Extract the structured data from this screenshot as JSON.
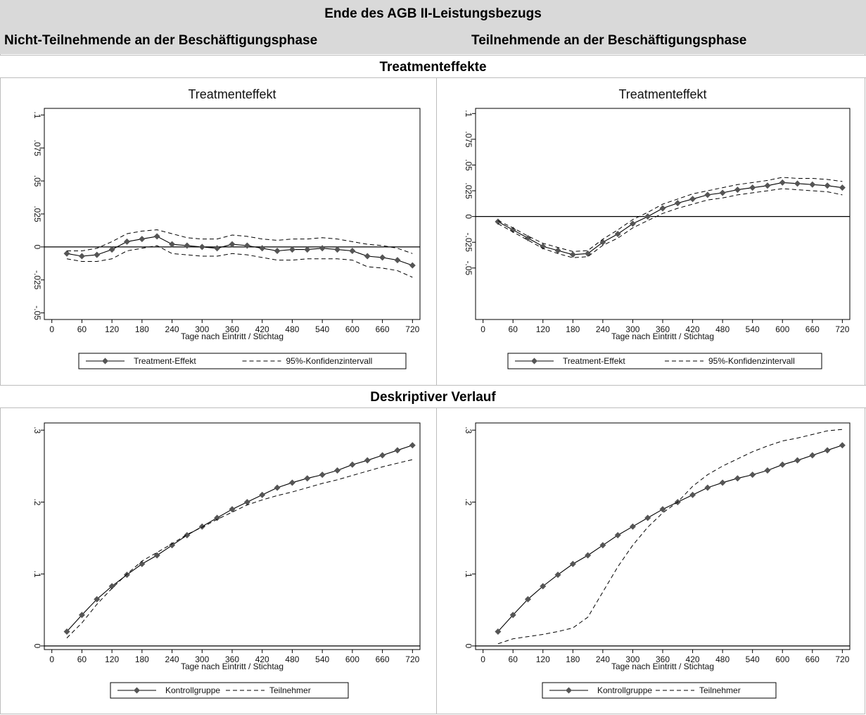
{
  "header": {
    "title": "Ende des AGB II-Leistungsbezugs",
    "left_column": "Nicht-Teilnehmende an der Beschäftigungsphase",
    "right_column": "Teilnehmende an der Beschäftigungsphase"
  },
  "sections": {
    "treatment": "Treatmenteffekte",
    "descriptive": "Deskriptiver Verlauf"
  },
  "colors": {
    "marker_line": "#555555",
    "line": "#000000",
    "grid": "#bdbdbd"
  },
  "chart_data": [
    {
      "id": "te-left",
      "type": "line",
      "title": "Treatmenteffekt",
      "xlabel": "Tage nach Eintritt / Stichtag",
      "ylabel": "",
      "x_ticks": [
        0,
        60,
        120,
        180,
        240,
        300,
        360,
        420,
        480,
        540,
        600,
        660,
        720
      ],
      "y_ticks": [
        -0.05,
        -0.025,
        0,
        0.025,
        0.05,
        0.075,
        0.1
      ],
      "y_tick_labels": [
        "-.05",
        "-.025",
        "0",
        ".025",
        ".05",
        ".075",
        ".1"
      ],
      "xlim": [
        -15,
        735
      ],
      "ylim": [
        -0.055,
        0.105
      ],
      "zero_line": true,
      "x": [
        30,
        60,
        90,
        120,
        150,
        180,
        210,
        240,
        270,
        300,
        330,
        360,
        390,
        420,
        450,
        480,
        510,
        540,
        570,
        600,
        630,
        660,
        690,
        720
      ],
      "series": [
        {
          "name": "Treatment-Effekt",
          "style": "marker",
          "values": [
            -0.005,
            -0.007,
            -0.006,
            -0.002,
            0.004,
            0.006,
            0.008,
            0.002,
            0.001,
            0.0,
            -0.001,
            0.002,
            0.001,
            -0.001,
            -0.003,
            -0.002,
            -0.002,
            -0.001,
            -0.002,
            -0.003,
            -0.007,
            -0.008,
            -0.01,
            -0.014
          ]
        },
        {
          "name": "95%-Konfidenzintervall",
          "style": "dashed",
          "values": [
            -0.003,
            -0.003,
            -0.001,
            0.004,
            0.01,
            0.012,
            0.013,
            0.01,
            0.007,
            0.006,
            0.006,
            0.009,
            0.008,
            0.006,
            0.005,
            0.006,
            0.006,
            0.007,
            0.006,
            0.004,
            0.002,
            0.001,
            -0.001,
            -0.005
          ]
        },
        {
          "name": "",
          "style": "dashed",
          "values": [
            -0.009,
            -0.011,
            -0.011,
            -0.009,
            -0.003,
            -0.001,
            0.001,
            -0.005,
            -0.006,
            -0.007,
            -0.007,
            -0.005,
            -0.006,
            -0.008,
            -0.01,
            -0.01,
            -0.009,
            -0.009,
            -0.009,
            -0.01,
            -0.015,
            -0.016,
            -0.018,
            -0.023
          ]
        }
      ],
      "legend": [
        "Treatment-Effekt",
        "95%-Konfidenzintervall"
      ]
    },
    {
      "id": "te-right",
      "type": "line",
      "title": "Treatmenteffekt",
      "xlabel": "Tage nach Eintritt / Stichtag",
      "ylabel": "",
      "x_ticks": [
        0,
        60,
        120,
        180,
        240,
        300,
        360,
        420,
        480,
        540,
        600,
        660,
        720
      ],
      "y_ticks": [
        -0.05,
        -0.025,
        0,
        0.025,
        0.05,
        0.075,
        0.1
      ],
      "y_tick_labels": [
        "-.05",
        "-.025",
        "0",
        ".025",
        ".05",
        ".075",
        ".1"
      ],
      "xlim": [
        -15,
        735
      ],
      "ylim": [
        -0.1,
        0.105
      ],
      "zero_line": true,
      "x": [
        30,
        60,
        90,
        120,
        150,
        180,
        210,
        240,
        270,
        300,
        330,
        360,
        390,
        420,
        450,
        480,
        510,
        540,
        570,
        600,
        630,
        660,
        690,
        720
      ],
      "series": [
        {
          "name": "Treatment-Effekt",
          "style": "marker",
          "values": [
            -0.005,
            -0.013,
            -0.021,
            -0.029,
            -0.033,
            -0.037,
            -0.036,
            -0.025,
            -0.017,
            -0.007,
            0.0,
            0.008,
            0.013,
            0.017,
            0.021,
            0.023,
            0.026,
            0.028,
            0.03,
            0.033,
            0.032,
            0.031,
            0.03,
            0.028
          ]
        },
        {
          "name": "95%-Konfidenzintervall",
          "style": "dashed",
          "values": [
            -0.004,
            -0.011,
            -0.019,
            -0.026,
            -0.03,
            -0.034,
            -0.033,
            -0.022,
            -0.013,
            -0.003,
            0.004,
            0.012,
            0.017,
            0.022,
            0.025,
            0.028,
            0.031,
            0.033,
            0.035,
            0.038,
            0.037,
            0.037,
            0.036,
            0.034
          ]
        },
        {
          "name": "",
          "style": "dashed",
          "values": [
            -0.007,
            -0.015,
            -0.023,
            -0.031,
            -0.036,
            -0.04,
            -0.039,
            -0.028,
            -0.021,
            -0.011,
            -0.004,
            0.003,
            0.008,
            0.012,
            0.016,
            0.018,
            0.021,
            0.023,
            0.025,
            0.027,
            0.026,
            0.025,
            0.024,
            0.021
          ]
        }
      ],
      "legend": [
        "Treatment-Effekt",
        "95%-Konfidenzintervall"
      ]
    },
    {
      "id": "desc-left",
      "type": "line",
      "title": "",
      "xlabel": "Tage nach Eintritt / Stichtag",
      "ylabel": "",
      "x_ticks": [
        0,
        60,
        120,
        180,
        240,
        300,
        360,
        420,
        480,
        540,
        600,
        660,
        720
      ],
      "y_ticks": [
        0,
        0.1,
        0.2,
        0.3
      ],
      "y_tick_labels": [
        "0",
        ".1",
        ".2",
        ".3"
      ],
      "xlim": [
        -15,
        735
      ],
      "ylim": [
        -0.005,
        0.31
      ],
      "zero_line": true,
      "x": [
        30,
        60,
        90,
        120,
        150,
        180,
        210,
        240,
        270,
        300,
        330,
        360,
        390,
        420,
        450,
        480,
        510,
        540,
        570,
        600,
        630,
        660,
        690,
        720
      ],
      "series": [
        {
          "name": "Kontrollgruppe",
          "style": "marker",
          "values": [
            0.02,
            0.043,
            0.065,
            0.083,
            0.099,
            0.114,
            0.126,
            0.14,
            0.154,
            0.166,
            0.178,
            0.19,
            0.2,
            0.21,
            0.22,
            0.227,
            0.233,
            0.238,
            0.244,
            0.252,
            0.258,
            0.265,
            0.272,
            0.279
          ]
        },
        {
          "name": "Teilnehmer",
          "style": "dashed",
          "values": [
            0.011,
            0.032,
            0.058,
            0.08,
            0.1,
            0.118,
            0.13,
            0.142,
            0.155,
            0.165,
            0.176,
            0.186,
            0.196,
            0.203,
            0.209,
            0.214,
            0.22,
            0.226,
            0.231,
            0.237,
            0.243,
            0.249,
            0.254,
            0.259
          ]
        }
      ],
      "legend": [
        "Kontrollgruppe",
        "Teilnehmer"
      ]
    },
    {
      "id": "desc-right",
      "type": "line",
      "title": "",
      "xlabel": "Tage nach Eintritt / Stichtag",
      "ylabel": "",
      "x_ticks": [
        0,
        60,
        120,
        180,
        240,
        300,
        360,
        420,
        480,
        540,
        600,
        660,
        720
      ],
      "y_ticks": [
        0,
        0.1,
        0.2,
        0.3
      ],
      "y_tick_labels": [
        "0",
        ".1",
        ".2",
        ".3"
      ],
      "xlim": [
        -15,
        735
      ],
      "ylim": [
        -0.005,
        0.31
      ],
      "zero_line": true,
      "x": [
        30,
        60,
        90,
        120,
        150,
        180,
        210,
        240,
        270,
        300,
        330,
        360,
        390,
        420,
        450,
        480,
        510,
        540,
        570,
        600,
        630,
        660,
        690,
        720
      ],
      "series": [
        {
          "name": "Kontrollgruppe",
          "style": "marker",
          "values": [
            0.02,
            0.043,
            0.065,
            0.083,
            0.099,
            0.114,
            0.126,
            0.14,
            0.154,
            0.166,
            0.178,
            0.19,
            0.2,
            0.21,
            0.22,
            0.227,
            0.233,
            0.238,
            0.244,
            0.252,
            0.258,
            0.265,
            0.272,
            0.279
          ]
        },
        {
          "name": "Teilnehmer",
          "style": "dashed",
          "values": [
            0.003,
            0.01,
            0.013,
            0.016,
            0.02,
            0.025,
            0.04,
            0.075,
            0.11,
            0.14,
            0.165,
            0.185,
            0.2,
            0.222,
            0.238,
            0.25,
            0.26,
            0.27,
            0.278,
            0.285,
            0.289,
            0.294,
            0.299,
            0.301
          ]
        }
      ],
      "legend": [
        "Kontrollgruppe",
        "Teilnehmer"
      ]
    }
  ]
}
